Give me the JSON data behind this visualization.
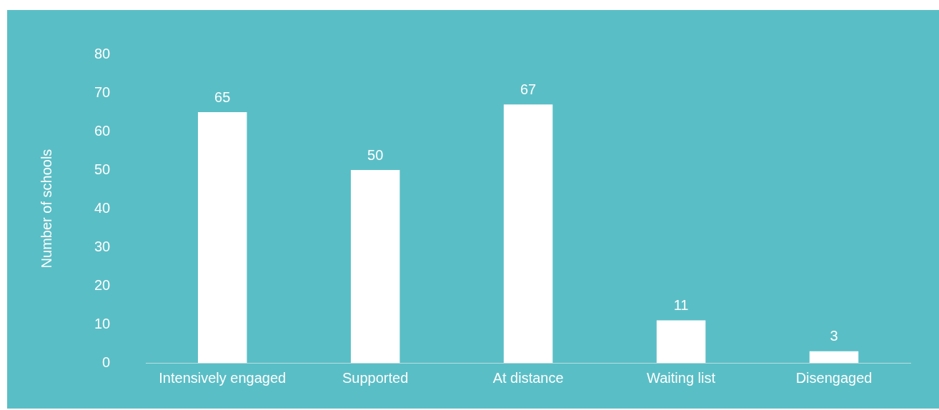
{
  "chart_data": {
    "type": "bar",
    "ylabel": "Number of schools",
    "categories": [
      "Intensively engaged",
      "Supported",
      "At distance",
      "Waiting list",
      "Disengaged"
    ],
    "values": [
      65,
      50,
      67,
      11,
      3
    ],
    "color": "#ffffff",
    "ylim": [
      0,
      80
    ],
    "yticks": [
      0,
      10,
      20,
      30,
      40,
      50,
      60,
      70,
      80
    ],
    "grid": false,
    "data_labels": true
  }
}
